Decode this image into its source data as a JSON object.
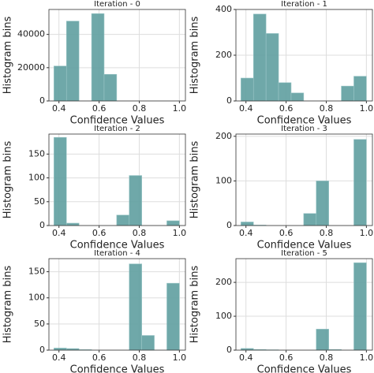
{
  "chart_data": [
    {
      "type": "histogram",
      "title": "Iteration - 0",
      "x_label": "Confidence Values",
      "y_label": "Histogram bins",
      "color": "#5f9ea0",
      "grid": true,
      "bins": [
        0.375,
        0.4375,
        0.5,
        0.5625,
        0.625,
        0.6875,
        0.75,
        0.8125,
        0.875,
        0.9375,
        1.0
      ],
      "values": [
        21000,
        48000,
        0,
        52500,
        16000,
        0,
        0,
        0,
        0,
        0
      ],
      "xlim": [
        0.35,
        1.03
      ],
      "xticks": [
        0.4,
        0.6,
        0.8,
        {
          "value": 1,
          "label": "1.0"
        }
      ],
      "ylim": [
        0,
        55000
      ],
      "yticks": [
        0,
        20000,
        40000
      ]
    },
    {
      "type": "histogram",
      "title": "Iteration - 1",
      "x_label": "Confidence Values",
      "y_label": "Histogram bins",
      "color": "#5f9ea0",
      "grid": true,
      "bins": [
        0.375,
        0.4375,
        0.5,
        0.5625,
        0.625,
        0.6875,
        0.75,
        0.8125,
        0.875,
        0.9375,
        1.0
      ],
      "values": [
        100,
        380,
        295,
        80,
        35,
        0,
        0,
        0,
        65,
        108
      ],
      "xlim": [
        0.35,
        1.03
      ],
      "xticks": [
        0.4,
        0.6,
        0.8,
        {
          "value": 1,
          "label": "1.0"
        }
      ],
      "ylim": [
        0,
        400
      ],
      "yticks": [
        0,
        200,
        400
      ]
    },
    {
      "type": "histogram",
      "title": "Iteration - 2",
      "x_label": "Confidence Values",
      "y_label": "Histogram bins",
      "color": "#5f9ea0",
      "grid": true,
      "bins": [
        0.375,
        0.4375,
        0.5,
        0.5625,
        0.625,
        0.6875,
        0.75,
        0.8125,
        0.875,
        0.9375,
        1.0
      ],
      "values": [
        185,
        5,
        0,
        0,
        0,
        22,
        105,
        0,
        0,
        10
      ],
      "xlim": [
        0.35,
        1.03
      ],
      "xticks": [
        0.4,
        0.6,
        0.8,
        {
          "value": 1,
          "label": "1.0"
        }
      ],
      "ylim": [
        0,
        192
      ],
      "yticks": [
        0,
        50,
        100,
        150
      ]
    },
    {
      "type": "histogram",
      "title": "Iteration - 3",
      "x_label": "Confidence Values",
      "y_label": "Histogram bins",
      "color": "#5f9ea0",
      "grid": true,
      "bins": [
        0.375,
        0.4375,
        0.5,
        0.5625,
        0.625,
        0.6875,
        0.75,
        0.8125,
        0.875,
        0.9375,
        1.0
      ],
      "values": [
        8,
        1,
        0,
        0,
        0,
        27,
        100,
        0,
        0,
        193
      ],
      "xlim": [
        0.35,
        1.03
      ],
      "xticks": [
        0.4,
        0.6,
        0.8,
        {
          "value": 1,
          "label": "1.0"
        }
      ],
      "ylim": [
        0,
        205
      ],
      "yticks": [
        0,
        100,
        200
      ]
    },
    {
      "type": "histogram",
      "title": "Iteration - 4",
      "x_label": "Confidence Values",
      "y_label": "Histogram bins",
      "color": "#5f9ea0",
      "grid": true,
      "bins": [
        0.375,
        0.4375,
        0.5,
        0.5625,
        0.625,
        0.6875,
        0.75,
        0.8125,
        0.875,
        0.9375,
        1.0
      ],
      "values": [
        4,
        3,
        1,
        0,
        0,
        0,
        165,
        28,
        0,
        128
      ],
      "xlim": [
        0.35,
        1.03
      ],
      "xticks": [
        0.4,
        0.6,
        0.8,
        {
          "value": 1,
          "label": "1.0"
        }
      ],
      "ylim": [
        0,
        175
      ],
      "yticks": [
        0,
        50,
        100,
        150
      ]
    },
    {
      "type": "histogram",
      "title": "Iteration - 5",
      "x_label": "Confidence Values",
      "y_label": "Histogram bins",
      "color": "#5f9ea0",
      "grid": true,
      "bins": [
        0.375,
        0.4375,
        0.5,
        0.5625,
        0.625,
        0.6875,
        0.75,
        0.8125,
        0.875,
        0.9375,
        1.0
      ],
      "values": [
        5,
        2,
        1,
        0,
        0,
        0,
        62,
        2,
        0,
        258
      ],
      "xlim": [
        0.35,
        1.03
      ],
      "xticks": [
        0.4,
        0.6,
        0.8,
        {
          "value": 1,
          "label": "1.0"
        }
      ],
      "ylim": [
        0,
        270
      ],
      "yticks": [
        0,
        100,
        200
      ]
    }
  ]
}
